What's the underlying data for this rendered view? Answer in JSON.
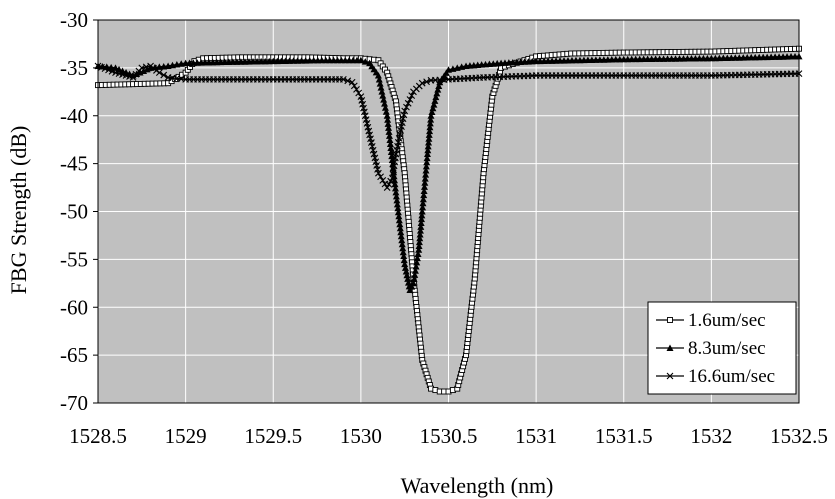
{
  "chart_data": {
    "type": "line",
    "xlabel": "Wavelength (nm)",
    "ylabel": "FBG Strength (dB)",
    "xlim": [
      1528.5,
      1532.5
    ],
    "ylim": [
      -70,
      -30
    ],
    "x_ticks": [
      "1528.5",
      "1529",
      "1529.5",
      "1530",
      "1530.5",
      "1531",
      "1531.5",
      "1532",
      "1532.5"
    ],
    "y_ticks": [
      "-30",
      "-35",
      "-40",
      "-45",
      "-50",
      "-55",
      "-60",
      "-65",
      "-70"
    ],
    "grid": true,
    "legend_position": "bottom-right",
    "plot_background": "#c0c0c0",
    "series": [
      {
        "name": "1.6um/sec",
        "marker": "open-square",
        "x": [
          1528.5,
          1528.7,
          1528.9,
          1529.0,
          1529.05,
          1529.1,
          1529.3,
          1529.5,
          1529.7,
          1529.9,
          1530.0,
          1530.1,
          1530.15,
          1530.2,
          1530.25,
          1530.3,
          1530.35,
          1530.4,
          1530.45,
          1530.5,
          1530.55,
          1530.6,
          1530.65,
          1530.7,
          1530.75,
          1530.8,
          1531.0,
          1531.2,
          1531.5,
          1532.0,
          1532.5
        ],
        "y": [
          -36.8,
          -36.7,
          -36.6,
          -35.5,
          -34.3,
          -34.0,
          -33.9,
          -33.9,
          -33.9,
          -34.0,
          -34.0,
          -34.2,
          -35.5,
          -38.5,
          -46.0,
          -57.0,
          -65.5,
          -68.5,
          -68.8,
          -68.8,
          -68.5,
          -65.0,
          -57.0,
          -46.0,
          -38.0,
          -35.0,
          -33.8,
          -33.5,
          -33.4,
          -33.3,
          -33.0
        ]
      },
      {
        "name": "8.3um/sec",
        "marker": "filled-triangle",
        "x": [
          1528.5,
          1528.6,
          1528.7,
          1528.8,
          1528.9,
          1529.0,
          1529.2,
          1529.5,
          1529.8,
          1530.0,
          1530.05,
          1530.1,
          1530.15,
          1530.2,
          1530.25,
          1530.28,
          1530.3,
          1530.33,
          1530.35,
          1530.38,
          1530.4,
          1530.45,
          1530.5,
          1530.6,
          1530.8,
          1531.0,
          1531.5,
          1532.0,
          1532.5
        ],
        "y": [
          -34.8,
          -35.0,
          -35.8,
          -35.0,
          -34.8,
          -34.5,
          -34.4,
          -34.3,
          -34.2,
          -34.2,
          -34.5,
          -35.8,
          -40.0,
          -48.0,
          -55.5,
          -58.2,
          -57.5,
          -54.0,
          -50.0,
          -44.0,
          -40.0,
          -36.5,
          -35.2,
          -34.8,
          -34.5,
          -34.3,
          -34.1,
          -34.0,
          -33.8
        ]
      },
      {
        "name": "16.6um/sec",
        "marker": "x-cross",
        "x": [
          1528.5,
          1528.6,
          1528.7,
          1528.75,
          1528.8,
          1528.85,
          1528.9,
          1529.0,
          1529.5,
          1529.9,
          1529.95,
          1530.0,
          1530.05,
          1530.1,
          1530.15,
          1530.18,
          1530.2,
          1530.25,
          1530.3,
          1530.35,
          1530.4,
          1530.5,
          1530.7,
          1531.0,
          1531.5,
          1532.0,
          1532.5
        ],
        "y": [
          -34.8,
          -35.5,
          -36.0,
          -35.0,
          -34.8,
          -35.5,
          -36.0,
          -36.2,
          -36.2,
          -36.2,
          -36.5,
          -38.0,
          -42.0,
          -46.0,
          -47.5,
          -46.5,
          -44.0,
          -39.5,
          -37.5,
          -36.6,
          -36.3,
          -36.2,
          -36.0,
          -35.8,
          -35.8,
          -35.8,
          -35.6
        ]
      }
    ]
  }
}
